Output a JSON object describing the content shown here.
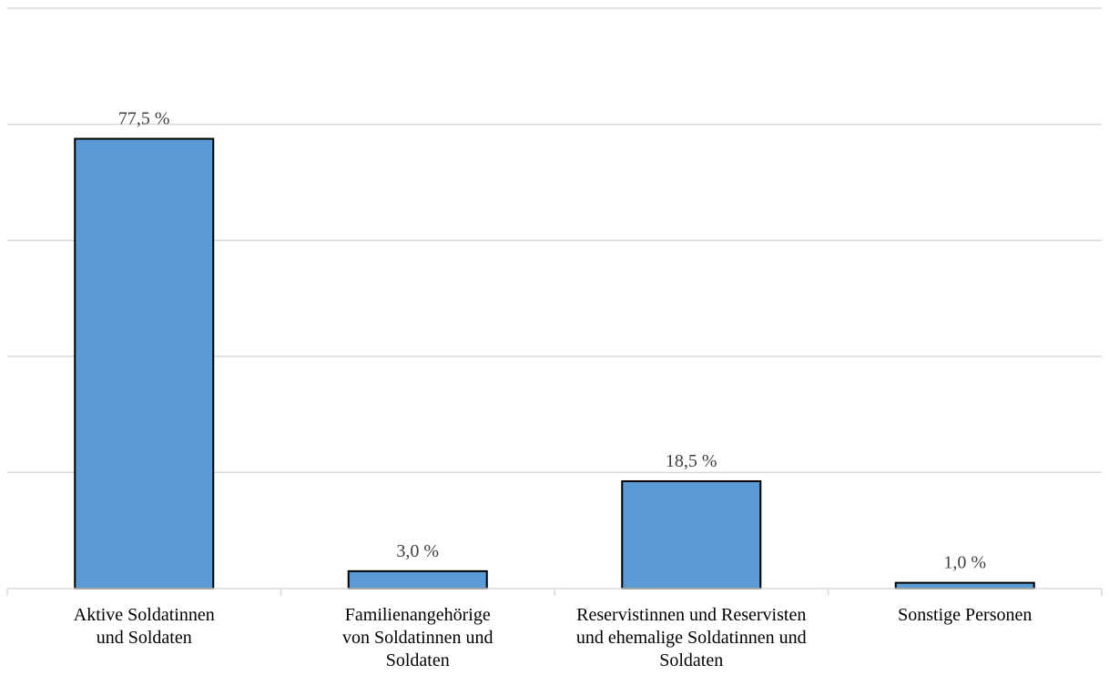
{
  "chart_data": {
    "type": "bar",
    "categories": [
      [
        "Aktive Soldatinnen",
        "und Soldaten"
      ],
      [
        "Familienangehörige",
        "von Soldatinnen und",
        "Soldaten"
      ],
      [
        "Reservistinnen und Reservisten",
        "und ehemalige Soldatinnen und",
        "Soldaten"
      ],
      [
        "Sonstige Personen"
      ]
    ],
    "values": [
      77.5,
      3.0,
      18.5,
      1.0
    ],
    "data_labels": [
      "77,5 %",
      "3,0 %",
      "18,5 %",
      "1,0 %"
    ],
    "ylim": [
      0,
      100
    ],
    "grid": true,
    "colors": {
      "bar": "#5b9bd5",
      "bar_outline": "#000000",
      "grid": "#d9d9d9"
    }
  }
}
